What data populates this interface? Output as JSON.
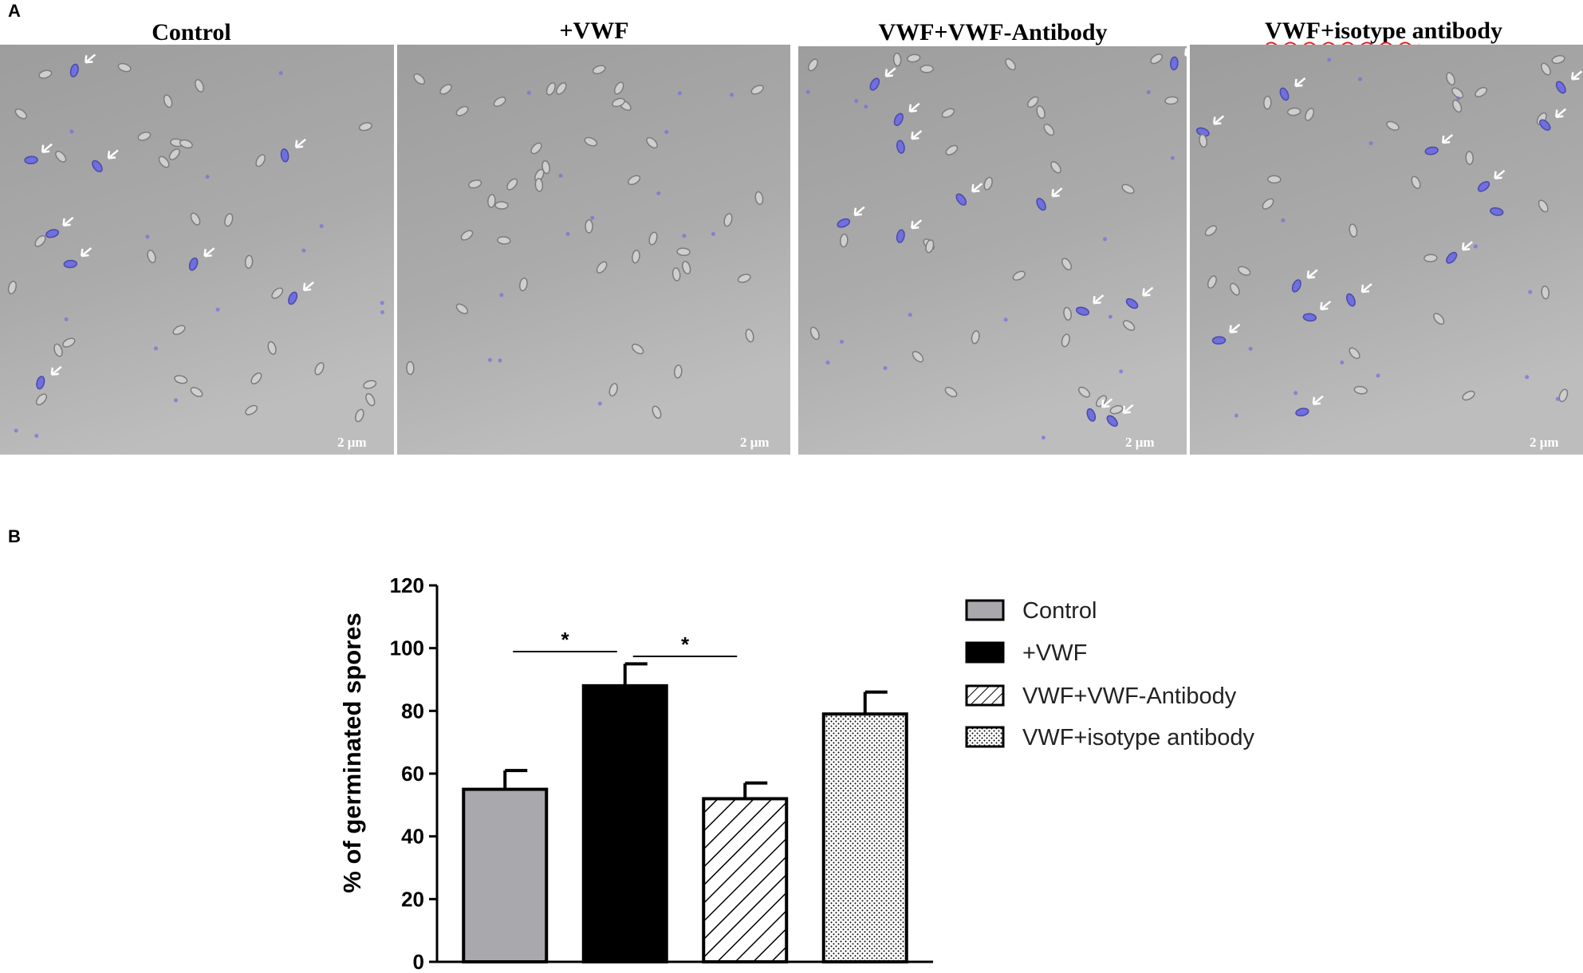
{
  "panels": {
    "a_label": "A",
    "b_label": "B"
  },
  "micrographs": [
    {
      "title": "Control",
      "scale_bar": "2 μm"
    },
    {
      "title": "+VWF",
      "scale_bar": "2 μm"
    },
    {
      "title": "VWF+VWF-Antibody",
      "scale_bar": "2 μm"
    },
    {
      "title": "VWF+isotype antibody",
      "scale_bar": "2 μm"
    }
  ],
  "colors": {
    "micrograph_bg": "#a9a9a9",
    "spore_stain": "#6f6fe0",
    "control_bar": "#a8a8ad",
    "vwf_bar": "#000000",
    "axis": "#000000"
  },
  "chart_data": {
    "type": "bar",
    "title": "",
    "xlabel": "",
    "ylabel": "% of germinated spores",
    "ylim": [
      0,
      120
    ],
    "yticks": [
      0,
      20,
      40,
      60,
      80,
      100,
      120
    ],
    "categories": [
      "Control",
      "+VWF",
      "VWF+VWF-Antibody",
      "VWF+isotype antibody"
    ],
    "values": [
      55,
      88,
      52,
      79
    ],
    "errors": [
      6,
      7,
      5,
      7
    ],
    "fills": [
      "solid-gray",
      "solid-black",
      "diagonal-hatch",
      "dots"
    ],
    "significance": [
      {
        "from": 0,
        "to": 1,
        "label": "*"
      },
      {
        "from": 1,
        "to": 2,
        "label": "*"
      }
    ],
    "legend": {
      "position": "right",
      "entries": [
        "Control",
        "+VWF",
        "VWF+VWF-Antibody",
        "VWF+isotype antibody"
      ]
    },
    "grid": false
  }
}
